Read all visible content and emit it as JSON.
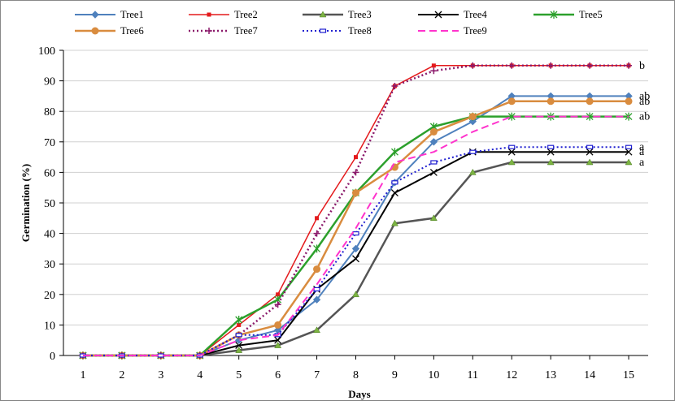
{
  "chart_data": {
    "type": "line",
    "title": "",
    "xlabel": "Days",
    "ylabel": "Germination (%)",
    "x": [
      1,
      2,
      3,
      4,
      5,
      6,
      7,
      8,
      9,
      10,
      11,
      12,
      13,
      14,
      15
    ],
    "xlim": [
      0.5,
      15.5
    ],
    "ylim": [
      0,
      100
    ],
    "yticks": [
      0,
      10,
      20,
      30,
      40,
      50,
      60,
      70,
      80,
      90,
      100
    ],
    "grid": true,
    "legend_position": "top",
    "series": [
      {
        "name": "Tree1",
        "color": "#4F81BD",
        "marker": "diamond",
        "dash": "solid",
        "width": 2,
        "values": [
          0,
          0,
          0,
          0,
          5,
          8.3,
          18.3,
          35,
          56.7,
          70,
          76.7,
          85,
          85,
          85,
          85
        ]
      },
      {
        "name": "Tree2",
        "color": "#E41A1C",
        "marker": "square",
        "dash": "solid",
        "width": 1.5,
        "values": [
          0,
          0,
          0,
          0,
          10,
          20,
          45,
          65,
          88.3,
          95,
          95,
          95,
          95,
          95,
          95
        ]
      },
      {
        "name": "Tree3",
        "color": "#555555",
        "marker": "triangle",
        "dash": "solid",
        "width": 2.5,
        "marker_color": "#7CB342",
        "values": [
          0,
          0,
          0,
          0,
          1.7,
          3.3,
          8.3,
          20,
          43.3,
          45,
          60,
          63.3,
          63.3,
          63.3,
          63.3
        ]
      },
      {
        "name": "Tree4",
        "color": "#000000",
        "marker": "x",
        "dash": "solid",
        "width": 2,
        "values": [
          0,
          0,
          0,
          0,
          3.3,
          5,
          21.7,
          31.7,
          53.3,
          60,
          66.7,
          66.7,
          66.7,
          66.7,
          66.7
        ]
      },
      {
        "name": "Tree5",
        "color": "#2CA02C",
        "marker": "star",
        "dash": "solid",
        "width": 2.5,
        "values": [
          0,
          0,
          0,
          0,
          11.7,
          18.3,
          35,
          53.3,
          66.7,
          75,
          78.3,
          78.3,
          78.3,
          78.3,
          78.3
        ]
      },
      {
        "name": "Tree6",
        "color": "#D98C3F",
        "marker": "circle",
        "dash": "solid",
        "width": 2.5,
        "values": [
          0,
          0,
          0,
          0,
          6.7,
          10,
          28.3,
          53.3,
          61.7,
          73.3,
          78.3,
          83.3,
          83.3,
          83.3,
          83.3
        ]
      },
      {
        "name": "Tree7",
        "color": "#8B1A6B",
        "marker": "plus",
        "dash": "dot",
        "width": 2.5,
        "values": [
          0,
          0,
          0,
          0,
          6.7,
          16.7,
          40,
          60,
          88.3,
          93.3,
          95,
          95,
          95,
          95,
          95
        ]
      },
      {
        "name": "Tree8",
        "color": "#1F1FD0",
        "marker": "dash",
        "dash": "dot",
        "width": 2,
        "values": [
          0,
          0,
          0,
          0,
          6.7,
          6.7,
          21.7,
          40,
          56.7,
          63.3,
          66.7,
          68.3,
          68.3,
          68.3,
          68.3
        ]
      },
      {
        "name": "Tree9",
        "color": "#FF33CC",
        "marker": "none",
        "dash": "dash",
        "width": 2,
        "values": [
          0,
          0,
          0,
          0,
          5,
          6.7,
          23.3,
          41.7,
          63.3,
          66.7,
          73.3,
          78.3,
          78.3,
          78.3,
          78.3
        ]
      }
    ],
    "annotations": [
      {
        "text": "b",
        "y": 95
      },
      {
        "text": "ab",
        "y": 85
      },
      {
        "text": "ab",
        "y": 83.3
      },
      {
        "text": "ab",
        "y": 78.3
      },
      {
        "text": "a",
        "y": 68.3
      },
      {
        "text": "a",
        "y": 66.7
      },
      {
        "text": "a",
        "y": 63.3
      }
    ]
  }
}
